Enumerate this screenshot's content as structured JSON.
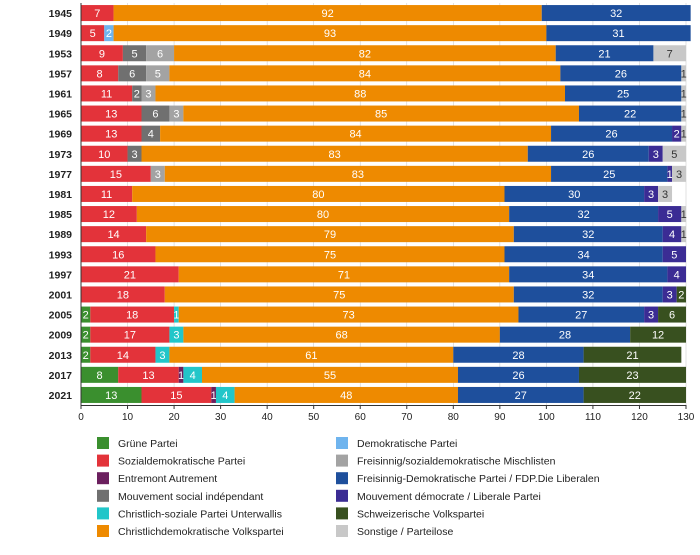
{
  "chart_data": {
    "type": "bar",
    "orientation": "horizontal",
    "stacked": true,
    "title": "",
    "xlabel": "",
    "ylabel": "",
    "xlim": [
      0,
      130
    ],
    "x_ticks": [
      0,
      10,
      20,
      30,
      40,
      50,
      60,
      70,
      80,
      90,
      100,
      110,
      120,
      130
    ],
    "grid": true,
    "legend_position": "bottom",
    "categories": [
      "1945",
      "1949",
      "1953",
      "1957",
      "1961",
      "1965",
      "1969",
      "1973",
      "1977",
      "1981",
      "1985",
      "1989",
      "1993",
      "1997",
      "2001",
      "2005",
      "2009",
      "2013",
      "2017",
      "2021"
    ],
    "series": [
      {
        "name": "Grüne Partei",
        "color": "#3a8f2e",
        "label_color": "#ffffff",
        "values": [
          0,
          0,
          0,
          0,
          0,
          0,
          0,
          0,
          0,
          0,
          0,
          0,
          0,
          0,
          0,
          2,
          2,
          2,
          8,
          13
        ]
      },
      {
        "name": "Sozialdemokratische Partei",
        "color": "#e3333a",
        "label_color": "#ffffff",
        "values": [
          7,
          5,
          9,
          8,
          11,
          13,
          13,
          10,
          15,
          11,
          12,
          14,
          16,
          21,
          18,
          18,
          17,
          14,
          13,
          15
        ]
      },
      {
        "name": "Entremont Autrement",
        "color": "#6b1f5e",
        "label_color": "#ffffff",
        "values": [
          0,
          0,
          0,
          0,
          0,
          0,
          0,
          0,
          0,
          0,
          0,
          0,
          0,
          0,
          0,
          0,
          0,
          0,
          1,
          1
        ]
      },
      {
        "name": "Demokratische Partei",
        "color": "#6fb4ee",
        "label_color": "#ffffff",
        "values": [
          0,
          2,
          0,
          0,
          0,
          0,
          0,
          0,
          0,
          0,
          0,
          0,
          0,
          0,
          0,
          0,
          0,
          0,
          0,
          0
        ]
      },
      {
        "name": "Mouvement social indépendant",
        "color": "#707070",
        "label_color": "#ffffff",
        "values": [
          0,
          0,
          5,
          6,
          2,
          6,
          4,
          3,
          0,
          0,
          0,
          0,
          0,
          0,
          0,
          0,
          0,
          0,
          0,
          0
        ]
      },
      {
        "name": "Freisinnig/sozialdemokratische Mischlisten",
        "color": "#a3a3a3",
        "label_color": "#ffffff",
        "values": [
          0,
          0,
          6,
          5,
          3,
          3,
          0,
          0,
          3,
          0,
          0,
          0,
          0,
          0,
          0,
          0,
          0,
          0,
          0,
          0
        ]
      },
      {
        "name": "Christlich-soziale Partei Unterwallis",
        "color": "#22c6c9",
        "label_color": "#ffffff",
        "values": [
          0,
          0,
          0,
          0,
          0,
          0,
          0,
          0,
          0,
          0,
          0,
          0,
          0,
          0,
          0,
          1,
          3,
          3,
          4,
          4
        ]
      },
      {
        "name": "Christlichdemokratische Volkspartei",
        "color": "#ee8a00",
        "label_color": "#ffffff",
        "values": [
          92,
          93,
          82,
          84,
          88,
          85,
          84,
          83,
          83,
          80,
          80,
          79,
          75,
          71,
          75,
          73,
          68,
          61,
          55,
          48
        ]
      },
      {
        "name": "Freisinnig-Demokratische Partei / FDP.Die Liberalen",
        "color": "#1e4f9c",
        "label_color": "#ffffff",
        "values": [
          32,
          31,
          21,
          26,
          25,
          22,
          26,
          26,
          25,
          30,
          32,
          32,
          34,
          34,
          32,
          27,
          28,
          28,
          26,
          27
        ]
      },
      {
        "name": "Mouvement démocrate / Liberale Partei",
        "color": "#3b2c94",
        "label_color": "#ffffff",
        "values": [
          0,
          0,
          0,
          0,
          0,
          0,
          2,
          3,
          1,
          3,
          5,
          4,
          5,
          4,
          3,
          3,
          0,
          0,
          0,
          0
        ]
      },
      {
        "name": "Schweizerische Volkspartei",
        "color": "#38501f",
        "label_color": "#ffffff",
        "values": [
          0,
          0,
          0,
          0,
          0,
          0,
          0,
          0,
          0,
          0,
          0,
          0,
          0,
          0,
          2,
          6,
          12,
          21,
          23,
          22
        ]
      },
      {
        "name": "Sonstige / Parteilose",
        "color": "#c8c8c8",
        "label_color": "#333333",
        "values": [
          0,
          0,
          7,
          1,
          1,
          1,
          1,
          5,
          3,
          3,
          1,
          1,
          0,
          0,
          0,
          0,
          0,
          0,
          0,
          0
        ]
      }
    ],
    "legend_columns": [
      [
        "Grüne Partei",
        "Sozialdemokratische Partei",
        "Entremont Autrement",
        "Mouvement social indépendant",
        "Christlich-soziale Partei Unterwallis",
        "Christlichdemokratische Volkspartei"
      ],
      [
        "Demokratische Partei",
        "Freisinnig/sozialdemokratische Mischlisten",
        "Freisinnig-Demokratische Partei / FDP.Die Liberalen",
        "Mouvement démocrate / Liberale Partei",
        "Schweizerische Volkspartei",
        "Sonstige / Parteilose"
      ]
    ]
  }
}
